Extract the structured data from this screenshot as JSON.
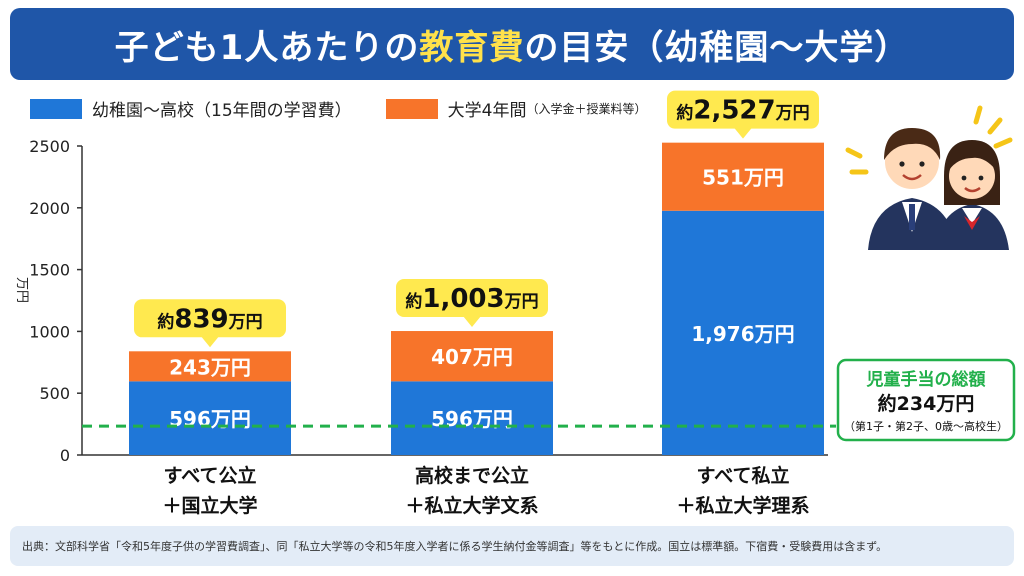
{
  "header": {
    "title_pre": "子ども1人あたりの",
    "title_highlight": "教育費",
    "title_post": "の目安（幼稚園〜大学）"
  },
  "legend": {
    "series1_label": "幼稚園〜高校（15年間の学習費）",
    "series2_label": "大学4年間",
    "series2_note": "（入学金＋授業料等）"
  },
  "colors": {
    "series1": "#1f77d8",
    "series2": "#f7742a",
    "callout": "#ffe94f",
    "reference": "#22b04b",
    "banner": "#1f56a8"
  },
  "chart_data": {
    "type": "bar",
    "stacked": true,
    "ylabel": "万円",
    "ylim": [
      0,
      2500
    ],
    "yticks": [
      0,
      500,
      1000,
      1500,
      2000,
      2500
    ],
    "grid": false,
    "categories": [
      [
        "すべて公立",
        "＋国立大学"
      ],
      [
        "高校まで公立",
        "＋私立大学文系"
      ],
      [
        "すべて私立",
        "＋私立大学理系"
      ]
    ],
    "series": [
      {
        "name": "幼稚園〜高校（15年間の学習費）",
        "values": [
          596,
          596,
          1976
        ],
        "labels": [
          "596万円",
          "596万円",
          "1,976万円"
        ]
      },
      {
        "name": "大学4年間（入学金＋授業料等）",
        "values": [
          243,
          407,
          551
        ],
        "labels": [
          "243万円",
          "407万円",
          "551万円"
        ]
      }
    ],
    "totals": [
      {
        "prefix": "約",
        "value": "839",
        "suffix": "万円"
      },
      {
        "prefix": "約",
        "value": "1,003",
        "suffix": "万円"
      },
      {
        "prefix": "約",
        "value": "2,527",
        "suffix": "万円"
      }
    ],
    "reference_line": {
      "value": 234,
      "label_line1": "児童手当の総額",
      "label_line2": "約234万円",
      "label_note": "（第1子・第2子、0歳〜高校生）"
    }
  },
  "footer": {
    "source": "出典：文部科学省「令和5年度子供の学習費調査」、同「私立大学等の令和5年度入学者に係る学生納付金等調査」等をもとに作成。国立は標準額。下宿費・受験費用は含まず。"
  }
}
